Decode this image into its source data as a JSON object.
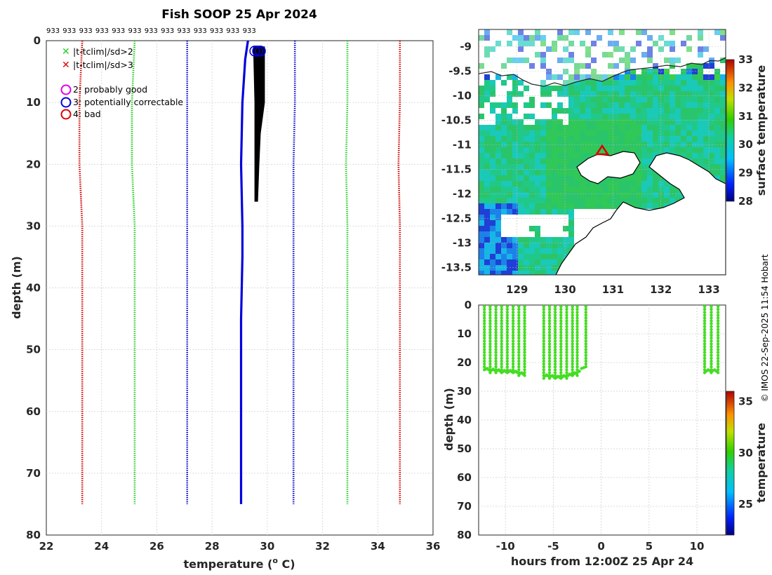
{
  "chart_data": [
    {
      "type": "line",
      "title": "Fish SOOP 25 Apr 2024",
      "xlabel": "temperature (° C)",
      "xlabel_main": "temperature (",
      "xlabel_sup": "o",
      "xlabel_end": " C)",
      "ylabel": "depth (m)",
      "xlim": [
        22,
        36
      ],
      "ylim": [
        0,
        80
      ],
      "y_reversed": true,
      "xticks": [
        22,
        24,
        26,
        28,
        30,
        32,
        34,
        36
      ],
      "yticks": [
        0,
        10,
        20,
        30,
        40,
        50,
        60,
        70,
        80
      ],
      "top_labels": [
        "933",
        "933",
        "933",
        "933",
        "933",
        "933",
        "933",
        "933",
        "933",
        "933",
        "933",
        "933",
        "933"
      ],
      "legend": {
        "green_cross": "|t-tclim|/sd>2",
        "red_cross": "|t-tclim|/sd>3",
        "magenta_circle": "2: probably good",
        "blue_circle": "3: potentially correctable",
        "red_circle": "4: bad"
      },
      "series": [
        {
          "name": "clim -3sd",
          "color": "#cc0000",
          "style": "dotted",
          "points": [
            [
              23.3,
              0
            ],
            [
              23.2,
              10
            ],
            [
              23.2,
              20
            ],
            [
              23.3,
              30
            ],
            [
              23.3,
              75
            ]
          ]
        },
        {
          "name": "clim -2sd",
          "color": "#22cc22",
          "style": "dotted",
          "points": [
            [
              25.2,
              0
            ],
            [
              25.1,
              10
            ],
            [
              25.1,
              20
            ],
            [
              25.2,
              30
            ],
            [
              25.2,
              75
            ]
          ]
        },
        {
          "name": "clim mean",
          "color": "#0000cc",
          "style": "dotted",
          "points": [
            [
              27.1,
              0
            ],
            [
              27.1,
              10
            ],
            [
              27.1,
              20
            ],
            [
              27.1,
              30
            ],
            [
              27.1,
              75
            ]
          ]
        },
        {
          "name": "clim +mean",
          "color": "#0000cc",
          "style": "dotted",
          "points": [
            [
              31.0,
              0
            ],
            [
              31.0,
              10
            ],
            [
              30.95,
              20
            ],
            [
              30.95,
              30
            ],
            [
              30.95,
              75
            ]
          ]
        },
        {
          "name": "clim +2sd",
          "color": "#22cc22",
          "style": "dotted",
          "points": [
            [
              32.9,
              0
            ],
            [
              32.9,
              10
            ],
            [
              32.85,
              20
            ],
            [
              32.9,
              30
            ],
            [
              32.9,
              75
            ]
          ]
        },
        {
          "name": "clim +3sd",
          "color": "#cc0000",
          "style": "dotted",
          "points": [
            [
              34.8,
              0
            ],
            [
              34.8,
              10
            ],
            [
              34.75,
              20
            ],
            [
              34.8,
              30
            ],
            [
              34.8,
              75
            ]
          ]
        },
        {
          "name": "profile",
          "color": "#0000dd",
          "style": "solid",
          "points": [
            [
              29.3,
              0
            ],
            [
              29.2,
              3
            ],
            [
              29.1,
              10
            ],
            [
              29.05,
              20
            ],
            [
              29.1,
              30
            ],
            [
              29.1,
              35
            ],
            [
              29.05,
              45
            ],
            [
              29.05,
              75
            ]
          ]
        },
        {
          "name": "observed casts",
          "color": "#000000",
          "style": "band",
          "points": [
            [
              29.5,
              1
            ],
            [
              29.9,
              1
            ],
            [
              29.9,
              10
            ],
            [
              29.75,
              15
            ],
            [
              29.7,
              20
            ],
            [
              29.65,
              26
            ],
            [
              29.55,
              26
            ],
            [
              29.55,
              10
            ]
          ]
        }
      ],
      "flag_points": [
        {
          "x": 29.55,
          "y": 1,
          "flag": "3"
        },
        {
          "x": 29.75,
          "y": 1,
          "flag": "3"
        },
        {
          "x": 29.65,
          "y": 1,
          "flag": "3"
        }
      ]
    },
    {
      "type": "heatmap",
      "title": "",
      "xlabel": "",
      "ylabel": "",
      "xlim": [
        128.2,
        133.35
      ],
      "ylim": [
        -13.65,
        -8.65
      ],
      "xticks": [
        129,
        130,
        131,
        132,
        133
      ],
      "yticks": [
        -9,
        -9.5,
        -10,
        -10.5,
        -11,
        -11.5,
        -12,
        -12.5,
        -13,
        -13.5
      ],
      "ytick_labels": [
        "-9",
        "-9.5",
        "-10",
        "-10.5",
        "-11",
        "-11.5",
        "-12",
        "-12.5",
        "-13",
        "-13.5"
      ],
      "colorbar_label": "surface temperature",
      "colorbar_range": [
        28,
        33
      ],
      "colorbar_ticks": [
        28,
        29,
        30,
        31,
        32,
        33
      ],
      "marker": {
        "lon": 130.75,
        "lat": -11.1,
        "symbol": "triangle"
      }
    },
    {
      "type": "scatter",
      "title": "",
      "xlabel": "hours from 12:00Z 25 Apr 24",
      "ylabel": "depth (m)",
      "xlim": [
        -12.8,
        13
      ],
      "ylim": [
        0,
        80
      ],
      "y_reversed": true,
      "xticks": [
        -10,
        -5,
        0,
        5,
        10
      ],
      "yticks": [
        0,
        10,
        20,
        30,
        40,
        50,
        60,
        70,
        80
      ],
      "colorbar_label": "temperature",
      "colorbar_range": [
        22,
        36
      ],
      "colorbar_ticks": [
        25,
        30,
        35
      ],
      "casts": [
        -12.2,
        -11.6,
        -11.0,
        -10.4,
        -9.8,
        -9.2,
        -8.6,
        -8.0,
        -6.0,
        -5.4,
        -4.8,
        -4.2,
        -3.6,
        -3.0,
        -2.5,
        -1.6,
        10.8,
        11.5,
        12.2
      ],
      "bottoms": [
        23,
        23.5,
        23.5,
        24,
        24,
        24,
        24.5,
        25,
        25.5,
        25.5,
        26,
        26,
        25.5,
        25,
        24.5,
        22,
        24,
        23.5,
        24
      ]
    }
  ],
  "credit": "© IMOS 22-Sep-2025 11:54 Hobart"
}
